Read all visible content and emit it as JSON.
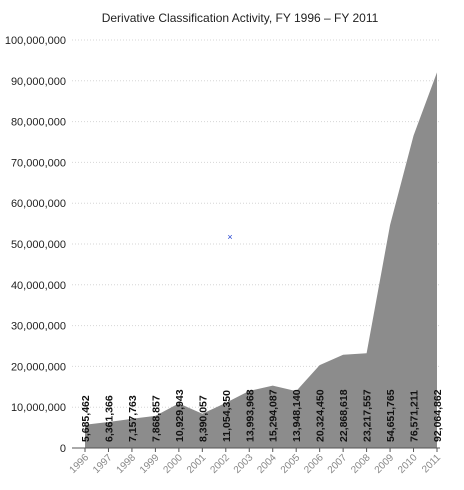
{
  "chart_data": {
    "type": "area",
    "title": "Derivative Classification Activity, FY 1996 – FY 2011",
    "xlabel": "",
    "ylabel": "",
    "categories": [
      "1996",
      "1997",
      "1998",
      "1999",
      "2000",
      "2001",
      "2002",
      "2003",
      "2004",
      "2005",
      "2006",
      "2007",
      "2008",
      "2009",
      "2010",
      "2011"
    ],
    "values": [
      5685462,
      6361366,
      7157763,
      7868857,
      10929943,
      8390057,
      11054350,
      13993968,
      15294087,
      13948140,
      20324450,
      22868618,
      23217557,
      54651765,
      76571211,
      92064862
    ],
    "data_labels": [
      "5,685,462",
      "6,361,366",
      "7,157,763",
      "7,868,857",
      "10,929,943",
      "8,390,057",
      "11,054,350",
      "13,993,968",
      "15,294,087",
      "13,948,140",
      "20,324,450",
      "22,868,618",
      "23,217,557",
      "54,651,765",
      "76,571,211",
      "92,064,862"
    ],
    "ylim": [
      0,
      100000000
    ],
    "yticks": [
      0,
      10000000,
      20000000,
      30000000,
      40000000,
      50000000,
      60000000,
      70000000,
      80000000,
      90000000,
      100000000
    ],
    "ytick_labels": [
      "0",
      "10,000,000",
      "20,000,000",
      "30,000,000",
      "40,000,000",
      "50,000,000",
      "60,000,000",
      "70,000,000",
      "80,000,000",
      "90,000,000",
      "100,000,000"
    ],
    "grid": true,
    "area_color": "#8c8c8c",
    "marker_symbol": "×",
    "marker_color": "#1f3fd0"
  }
}
